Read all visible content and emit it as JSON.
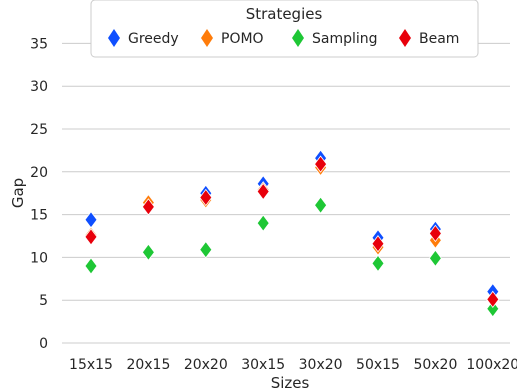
{
  "chart_data": {
    "type": "scatter",
    "marker": "diamond",
    "xlabel": "Sizes",
    "ylabel": "Gap",
    "categories": [
      "15x15",
      "20x15",
      "20x20",
      "30x15",
      "30x20",
      "50x15",
      "50x20",
      "100x20"
    ],
    "ylim": [
      0,
      36
    ],
    "yticks": [
      0,
      5,
      10,
      15,
      20,
      25,
      30,
      35
    ],
    "grid": true,
    "legend": {
      "title": "Strategies",
      "placement": "top-center"
    },
    "series": [
      {
        "name": "Greedy",
        "color": "#0f4fff",
        "values": [
          14.4,
          16.5,
          17.5,
          18.6,
          21.6,
          12.3,
          13.3,
          6.0
        ]
      },
      {
        "name": "POMO",
        "color": "#ff7c0a",
        "values": [
          12.6,
          16.4,
          16.7,
          17.9,
          20.5,
          11.2,
          12.0,
          5.0
        ]
      },
      {
        "name": "Sampling",
        "color": "#1ec735",
        "values": [
          9.0,
          10.6,
          10.9,
          14.0,
          16.1,
          9.3,
          9.9,
          4.0
        ]
      },
      {
        "name": "Beam",
        "color": "#e8000b",
        "values": [
          12.4,
          15.9,
          17.0,
          17.7,
          20.9,
          11.6,
          12.8,
          5.1
        ]
      }
    ]
  }
}
